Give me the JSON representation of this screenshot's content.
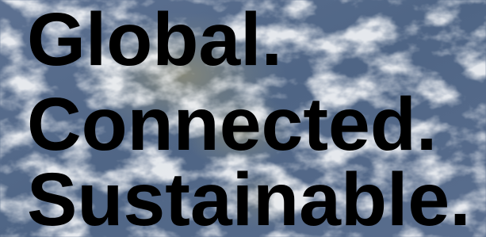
{
  "headline": {
    "lines": [
      "Global.",
      "Connected.",
      "Sustainable."
    ]
  }
}
